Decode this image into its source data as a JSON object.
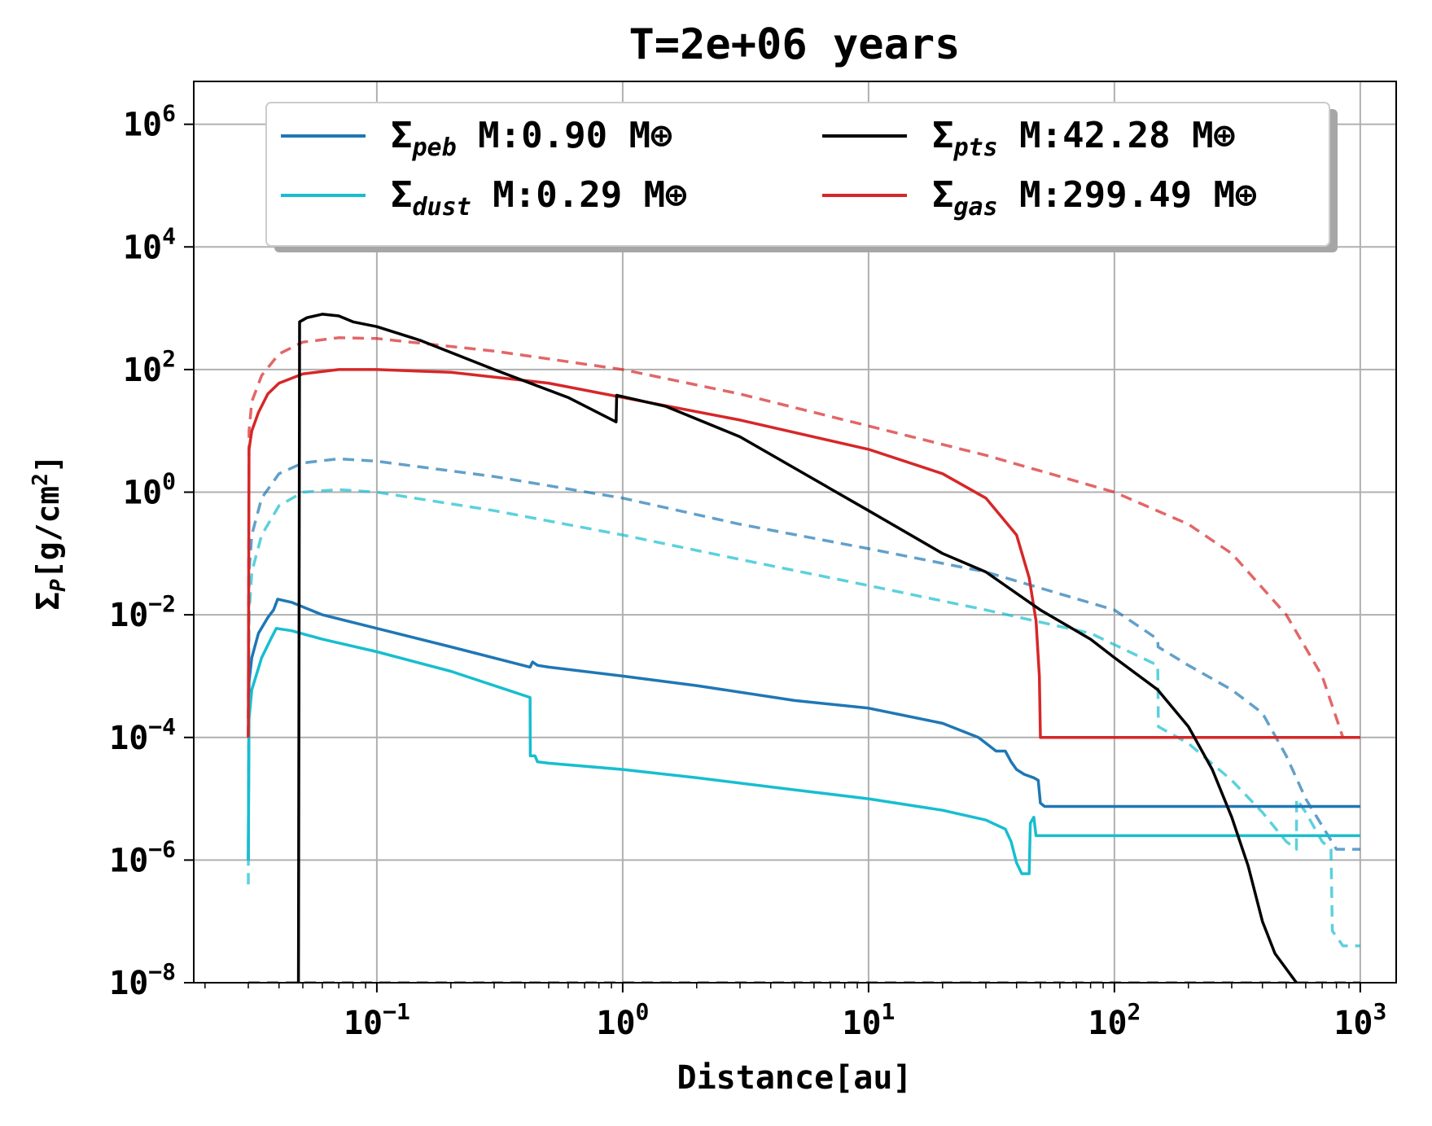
{
  "chart_data": {
    "type": "line",
    "title": "T=2e+06 years",
    "xlabel": "Distance[au]",
    "ylabel": "Σ_P [g/cm^2]",
    "xscale": "log",
    "yscale": "log",
    "xlim": [
      0.018,
      1400
    ],
    "ylim": [
      1e-08,
      5000000.0
    ],
    "grid": true,
    "legend_position": "top",
    "x_ticks": [
      {
        "value": 0.1,
        "mant": "10",
        "exp": "−1"
      },
      {
        "value": 1,
        "mant": "10",
        "exp": "0"
      },
      {
        "value": 10,
        "mant": "10",
        "exp": "1"
      },
      {
        "value": 100,
        "mant": "10",
        "exp": "2"
      },
      {
        "value": 1000,
        "mant": "10",
        "exp": "3"
      }
    ],
    "y_ticks": [
      {
        "value": 1e-08,
        "mant": "10",
        "exp": "−8"
      },
      {
        "value": 1e-06,
        "mant": "10",
        "exp": "−6"
      },
      {
        "value": 0.0001,
        "mant": "10",
        "exp": "−4"
      },
      {
        "value": 0.01,
        "mant": "10",
        "exp": "−2"
      },
      {
        "value": 1,
        "mant": "10",
        "exp": "0"
      },
      {
        "value": 100,
        "mant": "10",
        "exp": "2"
      },
      {
        "value": 10000.0,
        "mant": "10",
        "exp": "4"
      },
      {
        "value": 1000000.0,
        "mant": "10",
        "exp": "6"
      }
    ],
    "series": [
      {
        "name": "Σpeb M:0.90 M⊕",
        "sym": "Σ",
        "sub": "peb",
        "label_suffix": " M:0.90 M⊕",
        "color": "#1f77b4",
        "style": "solid",
        "legend": true,
        "points": [
          [
            0.03,
            1e-06
          ],
          [
            0.0302,
            0.0008
          ],
          [
            0.031,
            0.002
          ],
          [
            0.033,
            0.005
          ],
          [
            0.036,
            0.009
          ],
          [
            0.038,
            0.012
          ],
          [
            0.0395,
            0.018
          ],
          [
            0.045,
            0.016
          ],
          [
            0.06,
            0.01
          ],
          [
            0.1,
            0.006
          ],
          [
            0.2,
            0.003
          ],
          [
            0.42,
            0.0014
          ],
          [
            0.43,
            0.0017
          ],
          [
            0.45,
            0.0015
          ],
          [
            0.5,
            0.0014
          ],
          [
            1,
            0.001
          ],
          [
            2,
            0.0007
          ],
          [
            5,
            0.0004
          ],
          [
            10,
            0.0003
          ],
          [
            20,
            0.00017
          ],
          [
            28,
            0.0001
          ],
          [
            33,
            6e-05
          ],
          [
            36,
            6e-05
          ],
          [
            38,
            4e-05
          ],
          [
            40,
            3e-05
          ],
          [
            43,
            2.5e-05
          ],
          [
            47,
            2.2e-05
          ],
          [
            49,
            2e-05
          ],
          [
            50,
            8.5e-06
          ],
          [
            52,
            7.5e-06
          ],
          [
            1000,
            7.5e-06
          ]
        ]
      },
      {
        "name": "Σdust M:0.29 M⊕",
        "sym": "Σ",
        "sub": "dust",
        "label_suffix": " M:0.29 M⊕",
        "color": "#17becf",
        "style": "solid",
        "legend": true,
        "points": [
          [
            0.03,
            1e-06
          ],
          [
            0.0302,
            0.0002
          ],
          [
            0.031,
            0.0006
          ],
          [
            0.034,
            0.002
          ],
          [
            0.037,
            0.004
          ],
          [
            0.039,
            0.006
          ],
          [
            0.045,
            0.0055
          ],
          [
            0.06,
            0.004
          ],
          [
            0.1,
            0.0025
          ],
          [
            0.2,
            0.0012
          ],
          [
            0.42,
            0.00045
          ],
          [
            0.421,
            5e-05
          ],
          [
            0.44,
            5e-05
          ],
          [
            0.45,
            4e-05
          ],
          [
            0.5,
            3.8e-05
          ],
          [
            1,
            3e-05
          ],
          [
            2,
            2.2e-05
          ],
          [
            5,
            1.4e-05
          ],
          [
            10,
            1e-05
          ],
          [
            20,
            6.5e-06
          ],
          [
            30,
            4.5e-06
          ],
          [
            36,
            3.2e-06
          ],
          [
            38,
            2e-06
          ],
          [
            40,
            9e-07
          ],
          [
            42,
            6e-07
          ],
          [
            45,
            6e-07
          ],
          [
            45.5,
            4e-06
          ],
          [
            47,
            5e-06
          ],
          [
            48,
            2.5e-06
          ],
          [
            1000,
            2.5e-06
          ]
        ]
      },
      {
        "name": "Σpts M:42.28 M⊕",
        "sym": "Σ",
        "sub": "pts",
        "label_suffix": " M:42.28 M⊕",
        "color": "#000000",
        "style": "solid",
        "legend": true,
        "points": [
          [
            0.048,
            1e-08
          ],
          [
            0.0485,
            600
          ],
          [
            0.052,
            700
          ],
          [
            0.06,
            800
          ],
          [
            0.07,
            750
          ],
          [
            0.08,
            600
          ],
          [
            0.1,
            500
          ],
          [
            0.15,
            300
          ],
          [
            0.3,
            100
          ],
          [
            0.6,
            35
          ],
          [
            0.94,
            14
          ],
          [
            0.945,
            38
          ],
          [
            1.5,
            25
          ],
          [
            3,
            8
          ],
          [
            10,
            0.5
          ],
          [
            20,
            0.1
          ],
          [
            30,
            0.05
          ],
          [
            50,
            0.012
          ],
          [
            80,
            0.004
          ],
          [
            100,
            0.002
          ],
          [
            150,
            0.0006
          ],
          [
            200,
            0.00015
          ],
          [
            250,
            3e-05
          ],
          [
            300,
            5e-06
          ],
          [
            350,
            8e-07
          ],
          [
            400,
            1e-07
          ],
          [
            450,
            3e-08
          ],
          [
            550,
            1e-08
          ]
        ]
      },
      {
        "name": "Σgas M:299.49 M⊕",
        "sym": "Σ",
        "sub": "gas",
        "label_suffix": " M:299.49 M⊕",
        "color": "#d62728",
        "style": "solid",
        "legend": true,
        "points": [
          [
            0.03,
            0.0001
          ],
          [
            0.0302,
            5
          ],
          [
            0.031,
            10
          ],
          [
            0.033,
            20
          ],
          [
            0.036,
            40
          ],
          [
            0.04,
            60
          ],
          [
            0.05,
            85
          ],
          [
            0.07,
            100
          ],
          [
            0.1,
            100
          ],
          [
            0.2,
            90
          ],
          [
            0.5,
            60
          ],
          [
            1,
            35
          ],
          [
            3,
            15
          ],
          [
            10,
            5
          ],
          [
            20,
            2
          ],
          [
            30,
            0.8
          ],
          [
            40,
            0.2
          ],
          [
            45,
            0.04
          ],
          [
            48,
            0.008
          ],
          [
            49.5,
            0.001
          ],
          [
            50,
            0.0001
          ],
          [
            1000,
            0.0001
          ]
        ]
      },
      {
        "name": "",
        "color": "#d62728",
        "style": "dashed",
        "opacity": 0.7,
        "legend": false,
        "points": [
          [
            0.03,
            0.0001
          ],
          [
            0.0302,
            10
          ],
          [
            0.031,
            30
          ],
          [
            0.034,
            80
          ],
          [
            0.04,
            180
          ],
          [
            0.05,
            280
          ],
          [
            0.07,
            330
          ],
          [
            0.1,
            320
          ],
          [
            0.3,
            200
          ],
          [
            1,
            100
          ],
          [
            3,
            40
          ],
          [
            10,
            12
          ],
          [
            30,
            4
          ],
          [
            100,
            1
          ],
          [
            200,
            0.3
          ],
          [
            300,
            0.1
          ],
          [
            500,
            0.01
          ],
          [
            700,
            0.001
          ],
          [
            850,
            0.0001
          ],
          [
            1000,
            0.0001
          ]
        ]
      },
      {
        "name": "",
        "color": "#1f77b4",
        "style": "dashed",
        "opacity": 0.7,
        "legend": false,
        "points": [
          [
            0.03,
            0.0001
          ],
          [
            0.0302,
            0.05
          ],
          [
            0.031,
            0.2
          ],
          [
            0.034,
            0.8
          ],
          [
            0.04,
            2
          ],
          [
            0.05,
            3
          ],
          [
            0.07,
            3.5
          ],
          [
            0.1,
            3.2
          ],
          [
            0.3,
            1.8
          ],
          [
            1,
            0.8
          ],
          [
            3,
            0.3
          ],
          [
            10,
            0.12
          ],
          [
            30,
            0.05
          ],
          [
            100,
            0.012
          ],
          [
            150,
            0.004
          ],
          [
            150.5,
            0.003
          ],
          [
            200,
            0.0015
          ],
          [
            300,
            0.0006
          ],
          [
            400,
            0.00025
          ],
          [
            500,
            5e-05
          ],
          [
            600,
            1e-05
          ],
          [
            800,
            1.5e-06
          ],
          [
            1000,
            1.5e-06
          ]
        ]
      },
      {
        "name": "",
        "color": "#17becf",
        "style": "dashed",
        "opacity": 0.7,
        "legend": false,
        "points": [
          [
            0.03,
            4e-07
          ],
          [
            0.0302,
            0.01
          ],
          [
            0.031,
            0.05
          ],
          [
            0.034,
            0.2
          ],
          [
            0.04,
            0.6
          ],
          [
            0.05,
            1
          ],
          [
            0.07,
            1.1
          ],
          [
            0.1,
            1
          ],
          [
            0.3,
            0.5
          ],
          [
            1,
            0.2
          ],
          [
            3,
            0.08
          ],
          [
            10,
            0.03
          ],
          [
            30,
            0.012
          ],
          [
            80,
            0.005
          ],
          [
            150,
            0.0015
          ],
          [
            151,
            0.00015
          ],
          [
            200,
            8e-05
          ],
          [
            300,
            2e-05
          ],
          [
            400,
            6e-06
          ],
          [
            500,
            2e-06
          ],
          [
            550,
            1.5e-06
          ],
          [
            551,
            1e-05
          ],
          [
            600,
            6e-06
          ],
          [
            700,
            2e-06
          ],
          [
            760,
            1.5e-06
          ],
          [
            770,
            7e-08
          ],
          [
            850,
            4e-08
          ],
          [
            1000,
            4e-08
          ]
        ]
      },
      {
        "name": "",
        "color": "#000000",
        "style": "dashed",
        "opacity": 0.5,
        "legend": false,
        "points": [
          [
            0.03,
            1e-08
          ],
          [
            1000,
            1e-08
          ]
        ]
      }
    ]
  }
}
